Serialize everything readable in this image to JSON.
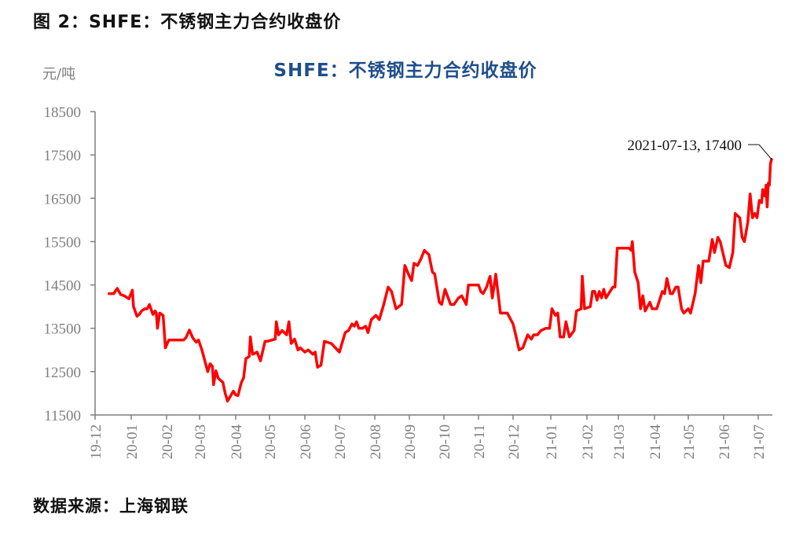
{
  "caption": "图 2：SHFE：不锈钢主力合约收盘价",
  "source": "数据来源：上海钢联",
  "colors": {
    "series": "#ff0000",
    "title": "#1f4e8c",
    "axis": "#7f7f7f",
    "annotation": "#111111"
  },
  "chart_data": {
    "type": "line",
    "title": "SHFE：不锈钢主力合约收盘价",
    "xlabel": "",
    "ylabel": "元/吨",
    "ylim": [
      11500,
      18500
    ],
    "yticks": [
      11500,
      12500,
      13500,
      14500,
      15500,
      16500,
      17500,
      18500
    ],
    "xticks": [
      "19-12",
      "20-01",
      "20-02",
      "20-03",
      "20-04",
      "20-05",
      "20-06",
      "20-07",
      "20-08",
      "20-09",
      "20-10",
      "20-11",
      "20-12",
      "21-01",
      "21-02",
      "21-03",
      "21-04",
      "21-05",
      "21-06",
      "21-07"
    ],
    "grid": false,
    "legend": "none",
    "annotation": {
      "label": "2021-07-13, 17400",
      "x": "2021-07-13",
      "y": 17400
    },
    "series": [
      {
        "name": "SHFE不锈钢主力合约收盘价",
        "points": [
          [
            "2019-12-13",
            14300
          ],
          [
            "2019-12-17",
            14300
          ],
          [
            "2019-12-20",
            14420
          ],
          [
            "2019-12-23",
            14280
          ],
          [
            "2019-12-26",
            14250
          ],
          [
            "2019-12-30",
            14180
          ],
          [
            "2020-01-02",
            14380
          ],
          [
            "2020-01-03",
            14000
          ],
          [
            "2020-01-06",
            13780
          ],
          [
            "2020-01-08",
            13820
          ],
          [
            "2020-01-10",
            13900
          ],
          [
            "2020-01-13",
            13950
          ],
          [
            "2020-01-15",
            13950
          ],
          [
            "2020-01-17",
            14050
          ],
          [
            "2020-01-20",
            13820
          ],
          [
            "2020-01-22",
            13900
          ],
          [
            "2020-01-23",
            13850
          ],
          [
            "2020-01-24",
            13500
          ],
          [
            "2020-01-26",
            13850
          ],
          [
            "2020-01-29",
            13800
          ],
          [
            "2020-01-31",
            13050
          ],
          [
            "2020-02-03",
            13230
          ],
          [
            "2020-02-10",
            13230
          ],
          [
            "2020-02-16",
            13230
          ],
          [
            "2020-02-18",
            13280
          ],
          [
            "2020-02-21",
            13460
          ],
          [
            "2020-02-24",
            13280
          ],
          [
            "2020-02-27",
            13180
          ],
          [
            "2020-02-29",
            13230
          ],
          [
            "2020-03-03",
            13000
          ],
          [
            "2020-03-06",
            12700
          ],
          [
            "2020-03-08",
            12500
          ],
          [
            "2020-03-10",
            12680
          ],
          [
            "2020-03-12",
            12620
          ],
          [
            "2020-03-13",
            12200
          ],
          [
            "2020-03-15",
            12520
          ],
          [
            "2020-03-17",
            12350
          ],
          [
            "2020-03-19",
            12300
          ],
          [
            "2020-03-21",
            12250
          ],
          [
            "2020-03-23",
            12000
          ],
          [
            "2020-03-25",
            11820
          ],
          [
            "2020-03-28",
            11960
          ],
          [
            "2020-03-30",
            12050
          ],
          [
            "2020-04-01",
            11960
          ],
          [
            "2020-04-03",
            11950
          ],
          [
            "2020-04-06",
            12250
          ],
          [
            "2020-04-08",
            12350
          ],
          [
            "2020-04-10",
            12800
          ],
          [
            "2020-04-13",
            12850
          ],
          [
            "2020-04-14",
            13300
          ],
          [
            "2020-04-16",
            12900
          ],
          [
            "2020-04-20",
            12950
          ],
          [
            "2020-04-23",
            12750
          ],
          [
            "2020-04-27",
            13200
          ],
          [
            "2020-04-29",
            13200
          ],
          [
            "2020-05-06",
            13250
          ],
          [
            "2020-05-07",
            13650
          ],
          [
            "2020-05-09",
            13350
          ],
          [
            "2020-05-12",
            13450
          ],
          [
            "2020-05-16",
            13350
          ],
          [
            "2020-05-18",
            13650
          ],
          [
            "2020-05-20",
            13150
          ],
          [
            "2020-05-23",
            13250
          ],
          [
            "2020-05-26",
            13000
          ],
          [
            "2020-05-28",
            13050
          ],
          [
            "2020-06-01",
            12950
          ],
          [
            "2020-06-04",
            13000
          ],
          [
            "2020-06-08",
            12900
          ],
          [
            "2020-06-10",
            12950
          ],
          [
            "2020-06-12",
            12600
          ],
          [
            "2020-06-15",
            12650
          ],
          [
            "2020-06-18",
            13200
          ],
          [
            "2020-06-24",
            13150
          ],
          [
            "2020-07-01",
            12950
          ],
          [
            "2020-07-06",
            13400
          ],
          [
            "2020-07-09",
            13450
          ],
          [
            "2020-07-12",
            13600
          ],
          [
            "2020-07-14",
            13550
          ],
          [
            "2020-07-16",
            13650
          ],
          [
            "2020-07-18",
            13500
          ],
          [
            "2020-07-21",
            13500
          ],
          [
            "2020-07-24",
            13550
          ],
          [
            "2020-07-26",
            13400
          ],
          [
            "2020-07-29",
            13700
          ],
          [
            "2020-08-02",
            13800
          ],
          [
            "2020-08-05",
            13700
          ],
          [
            "2020-08-09",
            14050
          ],
          [
            "2020-08-13",
            14450
          ],
          [
            "2020-08-16",
            14350
          ],
          [
            "2020-08-20",
            13950
          ],
          [
            "2020-08-25",
            14050
          ],
          [
            "2020-08-28",
            14950
          ],
          [
            "2020-09-01",
            14700
          ],
          [
            "2020-09-03",
            14600
          ],
          [
            "2020-09-05",
            15000
          ],
          [
            "2020-09-08",
            14950
          ],
          [
            "2020-09-11",
            15100
          ],
          [
            "2020-09-14",
            15300
          ],
          [
            "2020-09-18",
            15200
          ],
          [
            "2020-09-21",
            14800
          ],
          [
            "2020-09-23",
            14750
          ],
          [
            "2020-09-27",
            14100
          ],
          [
            "2020-09-29",
            14050
          ],
          [
            "2020-10-02",
            14400
          ],
          [
            "2020-10-07",
            14050
          ],
          [
            "2020-10-10",
            14050
          ],
          [
            "2020-10-14",
            14200
          ],
          [
            "2020-10-17",
            14250
          ],
          [
            "2020-10-21",
            14050
          ],
          [
            "2020-10-23",
            14500
          ],
          [
            "2020-11-01",
            14500
          ],
          [
            "2020-11-03",
            14350
          ],
          [
            "2020-11-05",
            14300
          ],
          [
            "2020-11-08",
            14450
          ],
          [
            "2020-11-11",
            14700
          ],
          [
            "2020-11-13",
            14200
          ],
          [
            "2020-11-16",
            14750
          ],
          [
            "2020-11-20",
            13850
          ],
          [
            "2020-11-26",
            13850
          ],
          [
            "2020-11-28",
            13750
          ],
          [
            "2020-12-01",
            13600
          ],
          [
            "2020-12-04",
            13250
          ],
          [
            "2020-12-06",
            13000
          ],
          [
            "2020-12-09",
            13050
          ],
          [
            "2020-12-13",
            13350
          ],
          [
            "2020-12-16",
            13250
          ],
          [
            "2020-12-18",
            13350
          ],
          [
            "2020-12-21",
            13350
          ],
          [
            "2020-12-24",
            13450
          ],
          [
            "2020-12-28",
            13500
          ],
          [
            "2020-12-31",
            13500
          ],
          [
            "2021-01-02",
            13950
          ],
          [
            "2021-01-05",
            13800
          ],
          [
            "2021-01-07",
            13850
          ],
          [
            "2021-01-09",
            13300
          ],
          [
            "2021-01-12",
            13300
          ],
          [
            "2021-01-14",
            13650
          ],
          [
            "2021-01-17",
            13300
          ],
          [
            "2021-01-21",
            13450
          ],
          [
            "2021-01-23",
            13900
          ],
          [
            "2021-01-27",
            13950
          ],
          [
            "2021-01-28",
            14700
          ],
          [
            "2021-01-30",
            13950
          ],
          [
            "2021-02-04",
            14000
          ],
          [
            "2021-02-06",
            14350
          ],
          [
            "2021-02-08",
            14350
          ],
          [
            "2021-02-10",
            14150
          ],
          [
            "2021-02-12",
            14350
          ],
          [
            "2021-02-14",
            14200
          ],
          [
            "2021-02-16",
            14400
          ],
          [
            "2021-02-18",
            14200
          ],
          [
            "2021-02-24",
            14450
          ],
          [
            "2021-02-26",
            14450
          ],
          [
            "2021-02-28",
            15350
          ],
          [
            "2021-03-05",
            15350
          ],
          [
            "2021-03-10",
            15350
          ],
          [
            "2021-03-12",
            15300
          ],
          [
            "2021-03-13",
            15500
          ],
          [
            "2021-03-15",
            14800
          ],
          [
            "2021-03-18",
            14550
          ],
          [
            "2021-03-20",
            13950
          ],
          [
            "2021-03-22",
            14250
          ],
          [
            "2021-03-24",
            13900
          ],
          [
            "2021-03-28",
            14100
          ],
          [
            "2021-03-30",
            13950
          ],
          [
            "2021-04-03",
            13950
          ],
          [
            "2021-04-08",
            14350
          ],
          [
            "2021-04-10",
            14300
          ],
          [
            "2021-04-12",
            14650
          ],
          [
            "2021-04-15",
            14300
          ],
          [
            "2021-04-17",
            14300
          ],
          [
            "2021-04-20",
            14450
          ],
          [
            "2021-04-22",
            14450
          ],
          [
            "2021-04-25",
            13950
          ],
          [
            "2021-04-27",
            13850
          ],
          [
            "2021-05-01",
            13950
          ],
          [
            "2021-05-03",
            13850
          ],
          [
            "2021-05-07",
            14300
          ],
          [
            "2021-05-10",
            14950
          ],
          [
            "2021-05-12",
            14550
          ],
          [
            "2021-05-14",
            15050
          ],
          [
            "2021-05-19",
            15050
          ],
          [
            "2021-05-22",
            15550
          ],
          [
            "2021-05-24",
            15250
          ],
          [
            "2021-05-27",
            15600
          ],
          [
            "2021-05-29",
            15500
          ],
          [
            "2021-06-03",
            14950
          ],
          [
            "2021-06-06",
            14900
          ],
          [
            "2021-06-09",
            15250
          ],
          [
            "2021-06-11",
            16150
          ],
          [
            "2021-06-15",
            16050
          ],
          [
            "2021-06-17",
            15600
          ],
          [
            "2021-06-19",
            15500
          ],
          [
            "2021-06-22",
            15950
          ],
          [
            "2021-06-24",
            16600
          ],
          [
            "2021-06-26",
            16050
          ],
          [
            "2021-06-28",
            16150
          ],
          [
            "2021-06-30",
            16050
          ],
          [
            "2021-07-02",
            16450
          ],
          [
            "2021-07-04",
            16400
          ],
          [
            "2021-07-05",
            16700
          ],
          [
            "2021-07-07",
            16550
          ],
          [
            "2021-07-08",
            16800
          ],
          [
            "2021-07-09",
            16300
          ],
          [
            "2021-07-10",
            16850
          ],
          [
            "2021-07-11",
            16800
          ],
          [
            "2021-07-12",
            17300
          ],
          [
            "2021-07-13",
            17400
          ]
        ]
      }
    ]
  }
}
